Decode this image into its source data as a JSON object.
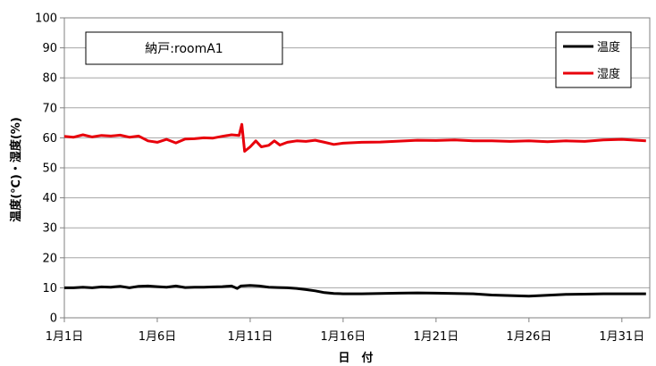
{
  "chart_data": {
    "type": "line",
    "title": "納戸:roomA1",
    "xlabel": "日　付",
    "ylabel": "温度(℃)・湿度(%)",
    "ylim": [
      0,
      100
    ],
    "yticks": [
      "0",
      "10",
      "20",
      "30",
      "40",
      "50",
      "60",
      "70",
      "80",
      "90",
      "100"
    ],
    "xlim": [
      1,
      32.5
    ],
    "xticks": [
      {
        "day": 1,
        "label": "1月1日"
      },
      {
        "day": 6,
        "label": "1月6日"
      },
      {
        "day": 11,
        "label": "1月11日"
      },
      {
        "day": 16,
        "label": "1月16日"
      },
      {
        "day": 21,
        "label": "1月21日"
      },
      {
        "day": 26,
        "label": "1月26日"
      },
      {
        "day": 31,
        "label": "1月31日"
      }
    ],
    "grid": true,
    "legend_position": "top-right",
    "series": [
      {
        "name": "温度",
        "color": "#000000",
        "points": [
          [
            1,
            10
          ],
          [
            1.5,
            10
          ],
          [
            2,
            10.2
          ],
          [
            2.5,
            10
          ],
          [
            3,
            10.3
          ],
          [
            3.5,
            10.2
          ],
          [
            4,
            10.5
          ],
          [
            4.5,
            10
          ],
          [
            5,
            10.5
          ],
          [
            5.5,
            10.6
          ],
          [
            6,
            10.4
          ],
          [
            6.5,
            10.2
          ],
          [
            7,
            10.6
          ],
          [
            7.5,
            10.1
          ],
          [
            8,
            10.2
          ],
          [
            8.5,
            10.2
          ],
          [
            9,
            10.3
          ],
          [
            9.5,
            10.4
          ],
          [
            10,
            10.6
          ],
          [
            10.3,
            9.8
          ],
          [
            10.5,
            10.6
          ],
          [
            11,
            10.8
          ],
          [
            11.5,
            10.6
          ],
          [
            12,
            10.2
          ],
          [
            12.5,
            10.1
          ],
          [
            13,
            10
          ],
          [
            13.5,
            9.8
          ],
          [
            14,
            9.4
          ],
          [
            14.5,
            9
          ],
          [
            15,
            8.4
          ],
          [
            15.5,
            8.1
          ],
          [
            16,
            8
          ],
          [
            17,
            8
          ],
          [
            18,
            8.1
          ],
          [
            19,
            8.2
          ],
          [
            20,
            8.3
          ],
          [
            21,
            8.2
          ],
          [
            22,
            8.1
          ],
          [
            23,
            8
          ],
          [
            24,
            7.6
          ],
          [
            25,
            7.4
          ],
          [
            26,
            7.2
          ],
          [
            27,
            7.5
          ],
          [
            28,
            7.8
          ],
          [
            29,
            7.9
          ],
          [
            30,
            8
          ],
          [
            31,
            8
          ],
          [
            32.3,
            8
          ]
        ]
      },
      {
        "name": "湿度",
        "color": "#e8000b",
        "points": [
          [
            1,
            60.5
          ],
          [
            1.5,
            60.2
          ],
          [
            2,
            61
          ],
          [
            2.5,
            60.3
          ],
          [
            3,
            60.8
          ],
          [
            3.5,
            60.6
          ],
          [
            4,
            60.9
          ],
          [
            4.5,
            60.2
          ],
          [
            5,
            60.6
          ],
          [
            5.5,
            59
          ],
          [
            6,
            58.5
          ],
          [
            6.5,
            59.5
          ],
          [
            7,
            58.3
          ],
          [
            7.5,
            59.6
          ],
          [
            8,
            59.7
          ],
          [
            8.5,
            60
          ],
          [
            9,
            59.9
          ],
          [
            9.5,
            60.5
          ],
          [
            10,
            61
          ],
          [
            10.4,
            60.8
          ],
          [
            10.55,
            64.5
          ],
          [
            10.7,
            55.5
          ],
          [
            11,
            57
          ],
          [
            11.3,
            59
          ],
          [
            11.6,
            57
          ],
          [
            12,
            57.5
          ],
          [
            12.3,
            59
          ],
          [
            12.6,
            57.6
          ],
          [
            13,
            58.5
          ],
          [
            13.5,
            59
          ],
          [
            14,
            58.8
          ],
          [
            14.5,
            59.2
          ],
          [
            15,
            58.5
          ],
          [
            15.5,
            57.8
          ],
          [
            16,
            58.2
          ],
          [
            17,
            58.5
          ],
          [
            18,
            58.6
          ],
          [
            19,
            58.9
          ],
          [
            20,
            59.2
          ],
          [
            21,
            59.1
          ],
          [
            22,
            59.3
          ],
          [
            23,
            59
          ],
          [
            24,
            59
          ],
          [
            25,
            58.8
          ],
          [
            26,
            59
          ],
          [
            27,
            58.7
          ],
          [
            28,
            59
          ],
          [
            29,
            58.8
          ],
          [
            30,
            59.3
          ],
          [
            31,
            59.5
          ],
          [
            32.3,
            59
          ]
        ]
      }
    ]
  }
}
